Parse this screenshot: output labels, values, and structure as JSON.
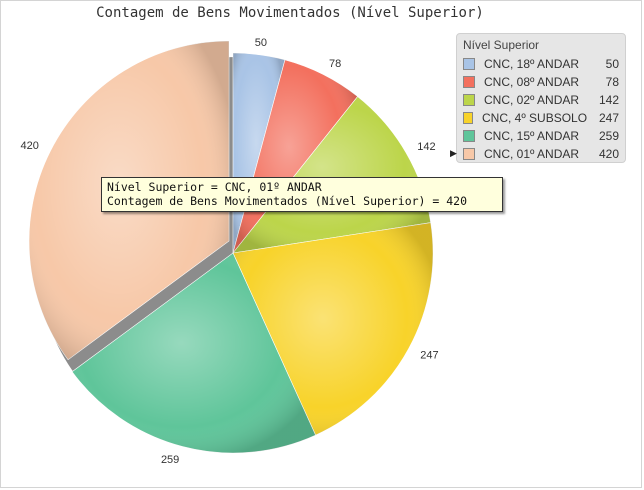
{
  "chart_data": {
    "type": "pie",
    "title": "Contagem de Bens Movimentados (Nível Superior)",
    "legend_title": "Nível Superior",
    "legend_position": "top-right",
    "slices": [
      {
        "label": "CNC, 18º ANDAR",
        "value": 50,
        "color": "#a9c4e6"
      },
      {
        "label": "CNC, 08º ANDAR",
        "value": 78,
        "color": "#f3705e"
      },
      {
        "label": "CNC, 02º ANDAR",
        "value": 142,
        "color": "#bcd54a"
      },
      {
        "label": "CNC, 4º SUBSOLO",
        "value": 247,
        "color": "#f8d32a"
      },
      {
        "label": "CNC, 15º ANDAR",
        "value": 259,
        "color": "#5fc59a"
      },
      {
        "label": "CNC, 01º ANDAR",
        "value": 420,
        "color": "#f7c8a8",
        "exploded": true
      }
    ]
  },
  "tooltip": {
    "line1": "Nível Superior = CNC, 01º ANDAR",
    "line2": "Contagem de Bens Movimentados (Nível Superior) = 420"
  }
}
